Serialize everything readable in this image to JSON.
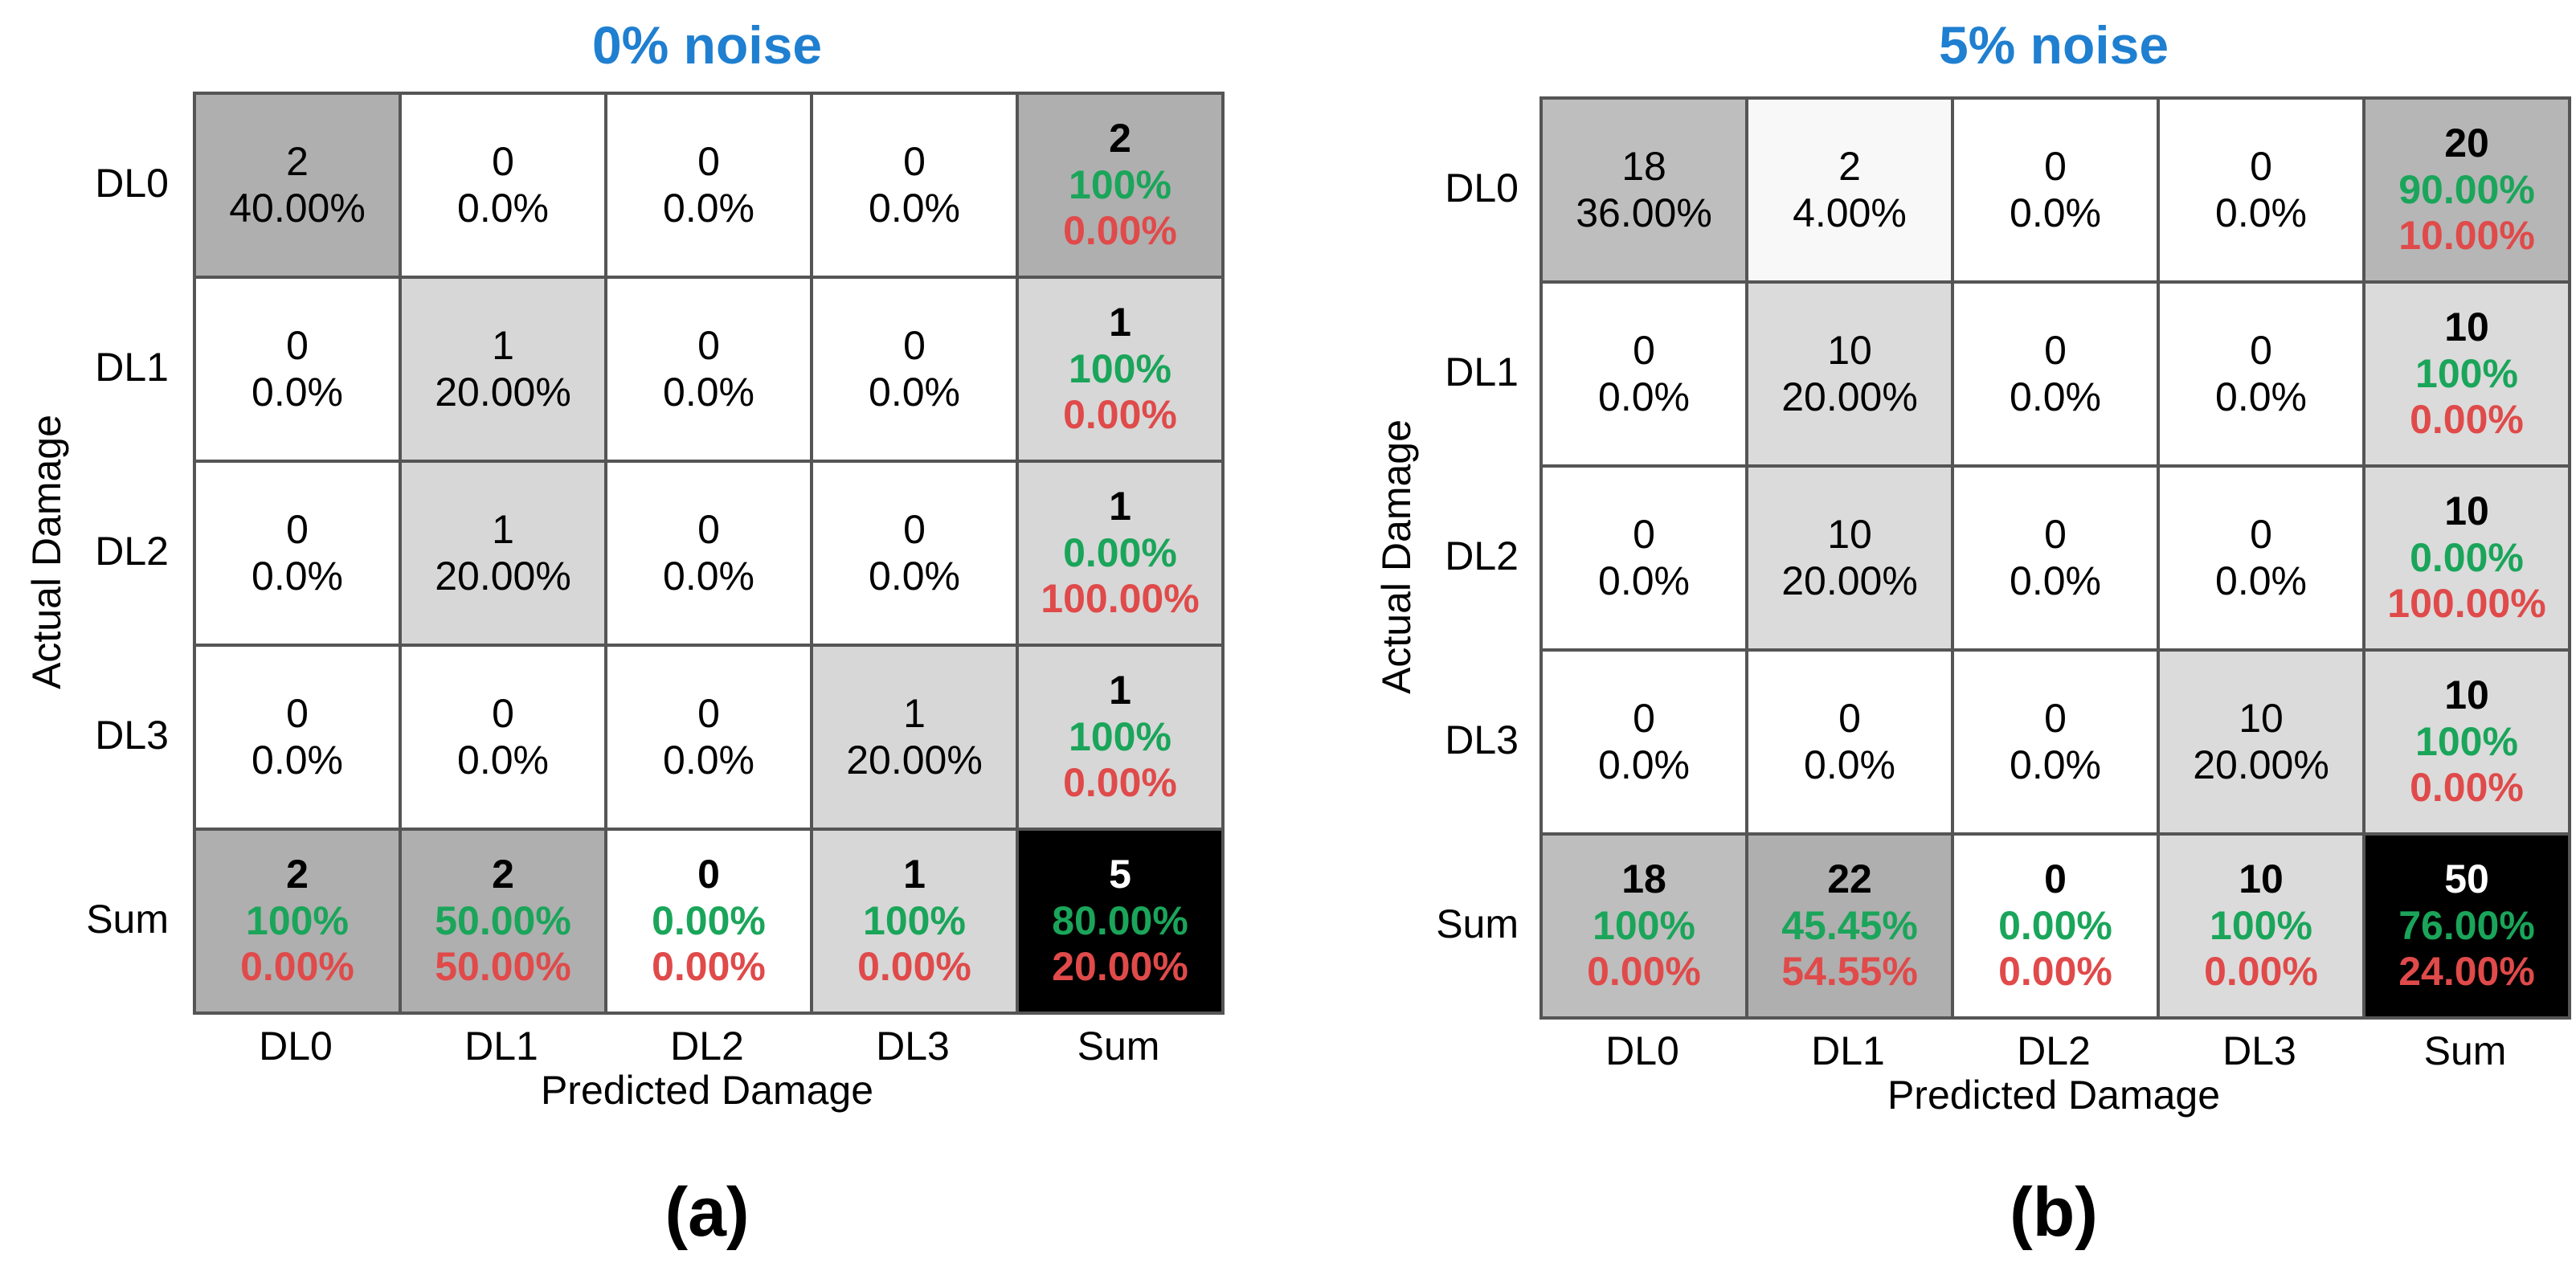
{
  "colors": {
    "title": "#1f7fd0",
    "good_pct": "#1aa55a",
    "bad_pct": "#e04a4a",
    "total_bg": "#000000"
  },
  "chart_data": [
    {
      "type": "heatmap",
      "title": "0% noise",
      "panel": "(a)",
      "xlabel": "Predicted Damage",
      "ylabel": "Actual Damage",
      "rows": [
        "DL0",
        "DL1",
        "DL2",
        "DL3"
      ],
      "cols": [
        "DL0",
        "DL1",
        "DL2",
        "DL3"
      ],
      "sum_label": "Sum",
      "matrix": [
        [
          {
            "count": "2",
            "pct": "40.00%"
          },
          {
            "count": "0",
            "pct": "0.0%"
          },
          {
            "count": "0",
            "pct": "0.0%"
          },
          {
            "count": "0",
            "pct": "0.0%"
          }
        ],
        [
          {
            "count": "0",
            "pct": "0.0%"
          },
          {
            "count": "1",
            "pct": "20.00%"
          },
          {
            "count": "0",
            "pct": "0.0%"
          },
          {
            "count": "0",
            "pct": "0.0%"
          }
        ],
        [
          {
            "count": "0",
            "pct": "0.0%"
          },
          {
            "count": "1",
            "pct": "20.00%"
          },
          {
            "count": "0",
            "pct": "0.0%"
          },
          {
            "count": "0",
            "pct": "0.0%"
          }
        ],
        [
          {
            "count": "0",
            "pct": "0.0%"
          },
          {
            "count": "0",
            "pct": "0.0%"
          },
          {
            "count": "0",
            "pct": "0.0%"
          },
          {
            "count": "1",
            "pct": "20.00%"
          }
        ]
      ],
      "row_sums": [
        {
          "count": "2",
          "good": "100%",
          "bad": "0.00%"
        },
        {
          "count": "1",
          "good": "100%",
          "bad": "0.00%"
        },
        {
          "count": "1",
          "good": "0.00%",
          "bad": "100.00%"
        },
        {
          "count": "1",
          "good": "100%",
          "bad": "0.00%"
        }
      ],
      "col_sums": [
        {
          "count": "2",
          "good": "100%",
          "bad": "0.00%"
        },
        {
          "count": "2",
          "good": "50.00%",
          "bad": "50.00%"
        },
        {
          "count": "0",
          "good": "0.00%",
          "bad": "0.00%"
        },
        {
          "count": "1",
          "good": "100%",
          "bad": "0.00%"
        }
      ],
      "total": {
        "count": "5",
        "good": "80.00%",
        "bad": "20.00%"
      }
    },
    {
      "type": "heatmap",
      "title": "5% noise",
      "panel": "(b)",
      "xlabel": "Predicted Damage",
      "ylabel": "Actual Damage",
      "rows": [
        "DL0",
        "DL1",
        "DL2",
        "DL3"
      ],
      "cols": [
        "DL0",
        "DL1",
        "DL2",
        "DL3"
      ],
      "sum_label": "Sum",
      "matrix": [
        [
          {
            "count": "18",
            "pct": "36.00%"
          },
          {
            "count": "2",
            "pct": "4.00%"
          },
          {
            "count": "0",
            "pct": "0.0%"
          },
          {
            "count": "0",
            "pct": "0.0%"
          }
        ],
        [
          {
            "count": "0",
            "pct": "0.0%"
          },
          {
            "count": "10",
            "pct": "20.00%"
          },
          {
            "count": "0",
            "pct": "0.0%"
          },
          {
            "count": "0",
            "pct": "0.0%"
          }
        ],
        [
          {
            "count": "0",
            "pct": "0.0%"
          },
          {
            "count": "10",
            "pct": "20.00%"
          },
          {
            "count": "0",
            "pct": "0.0%"
          },
          {
            "count": "0",
            "pct": "0.0%"
          }
        ],
        [
          {
            "count": "0",
            "pct": "0.0%"
          },
          {
            "count": "0",
            "pct": "0.0%"
          },
          {
            "count": "0",
            "pct": "0.0%"
          },
          {
            "count": "10",
            "pct": "20.00%"
          }
        ]
      ],
      "row_sums": [
        {
          "count": "20",
          "good": "90.00%",
          "bad": "10.00%"
        },
        {
          "count": "10",
          "good": "100%",
          "bad": "0.00%"
        },
        {
          "count": "10",
          "good": "0.00%",
          "bad": "100.00%"
        },
        {
          "count": "10",
          "good": "100%",
          "bad": "0.00%"
        }
      ],
      "col_sums": [
        {
          "count": "18",
          "good": "100%",
          "bad": "0.00%"
        },
        {
          "count": "22",
          "good": "45.45%",
          "bad": "54.55%"
        },
        {
          "count": "0",
          "good": "0.00%",
          "bad": "0.00%"
        },
        {
          "count": "10",
          "good": "100%",
          "bad": "0.00%"
        }
      ],
      "total": {
        "count": "50",
        "good": "76.00%",
        "bad": "24.00%"
      }
    }
  ]
}
